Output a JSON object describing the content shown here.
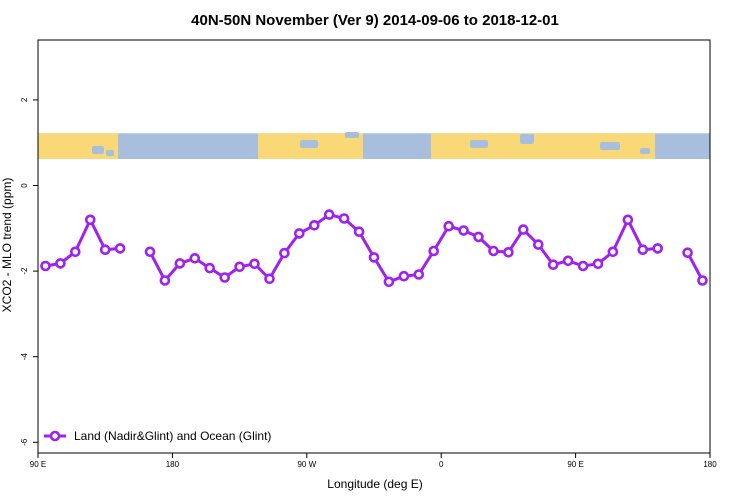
{
  "chart_data": {
    "type": "line",
    "title": "40N-50N November (Ver 9)   2014-09-06 to 2018-12-01",
    "xlabel": "Longitude (deg E)",
    "ylabel": "XCO2 - MLO trend (ppm)",
    "xlim": [
      90,
      540
    ],
    "ylim": [
      -6.25,
      3.4
    ],
    "x_ticks": [
      {
        "value": 90,
        "label": "90 E"
      },
      {
        "value": 180,
        "label": "180"
      },
      {
        "value": 270,
        "label": "90 W"
      },
      {
        "value": 360,
        "label": "0"
      },
      {
        "value": 450,
        "label": "90 E"
      },
      {
        "value": 540,
        "label": "180"
      }
    ],
    "y_ticks": [
      {
        "value": 2,
        "label": "2"
      },
      {
        "value": 0,
        "label": "0"
      },
      {
        "value": -2,
        "label": "-2"
      },
      {
        "value": -4,
        "label": "-4"
      },
      {
        "value": -6,
        "label": "-6"
      }
    ],
    "legend": {
      "position": "bottom-left",
      "label": "Land (Nadir&Glint) and Ocean (Glint)"
    },
    "series_color": "#a020f0",
    "series": [
      {
        "name": "Land (Nadir&Glint) and Ocean (Glint)",
        "segments": [
          {
            "x": [
              95,
              105,
              115,
              125,
              135,
              145
            ],
            "y": [
              -1.88,
              -1.82,
              -1.55,
              -0.8,
              -1.5,
              -1.47
            ]
          },
          {
            "x": [
              165,
              175,
              185,
              195,
              205,
              215,
              225,
              235,
              245,
              255,
              265,
              275,
              285,
              295,
              305,
              315,
              325,
              335,
              345,
              355,
              365,
              375,
              385,
              395,
              405,
              415,
              425,
              435,
              445,
              455,
              465,
              475,
              485,
              495,
              505
            ],
            "y": [
              -1.55,
              -2.22,
              -1.82,
              -1.7,
              -1.93,
              -2.15,
              -1.9,
              -1.83,
              -2.18,
              -1.58,
              -1.12,
              -0.93,
              -0.68,
              -0.77,
              -1.08,
              -1.68,
              -2.25,
              -2.12,
              -2.08,
              -1.53,
              -0.95,
              -1.05,
              -1.2,
              -1.53,
              -1.56,
              -1.03,
              -1.38,
              -1.85,
              -1.76,
              -1.88,
              -1.83,
              -1.55,
              -0.8,
              -1.5,
              -1.47
            ]
          },
          {
            "x": [
              525,
              535
            ],
            "y": [
              -1.57,
              -2.22
            ]
          }
        ]
      }
    ],
    "map_band": {
      "y_top": 1.22,
      "y_bottom": 0.62,
      "ocean_color": "#a7bedc",
      "land_color": "#f9d977"
    }
  }
}
